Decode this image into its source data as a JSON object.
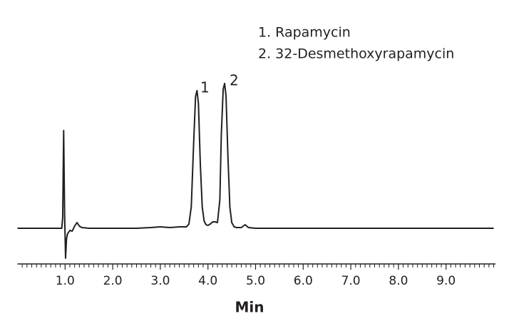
{
  "chart_data": {
    "type": "line",
    "legend_items": [
      "1.  Rapamycin",
      "2.  32-Desmethoxyrapamycin"
    ],
    "peak_labels": [
      "1",
      "2"
    ],
    "xlabel": "Min",
    "color": "#231f20",
    "x": [
      0,
      0.5,
      0.9,
      0.93,
      0.95,
      0.97,
      0.99,
      1.01,
      1.03,
      1.05,
      1.08,
      1.1,
      1.15,
      1.2,
      1.25,
      1.3,
      1.35,
      1.5,
      2.0,
      2.5,
      2.8,
      3.0,
      3.2,
      3.4,
      3.55,
      3.6,
      3.65,
      3.7,
      3.74,
      3.77,
      3.8,
      3.84,
      3.88,
      3.92,
      3.96,
      4.0,
      4.05,
      4.1,
      4.15,
      4.2,
      4.25,
      4.28,
      4.32,
      4.35,
      4.38,
      4.42,
      4.46,
      4.5,
      4.55,
      4.6,
      4.7,
      4.78,
      4.85,
      5.0,
      6.0,
      7.0,
      8.0,
      9.0,
      10.0
    ],
    "values": [
      0,
      0,
      0,
      0,
      15,
      137,
      20,
      -42,
      -15,
      -8,
      -5,
      -3,
      -4,
      3,
      8,
      3,
      1,
      0,
      0,
      0,
      1,
      2,
      1,
      2,
      2,
      6,
      30,
      120,
      185,
      193,
      175,
      90,
      30,
      10,
      5,
      4,
      6,
      9,
      9,
      8,
      40,
      130,
      195,
      203,
      185,
      100,
      30,
      8,
      2,
      1,
      1,
      5,
      1,
      0,
      0,
      0,
      0,
      0,
      0
    ],
    "xlim": [
      0,
      10
    ],
    "xticks": [
      {
        "value": 1,
        "label": "1.0"
      },
      {
        "value": 2,
        "label": "2.0"
      },
      {
        "value": 3,
        "label": "3.0"
      },
      {
        "value": 4,
        "label": "4.0"
      },
      {
        "value": 5,
        "label": "5.0"
      },
      {
        "value": 6,
        "label": "6.0"
      },
      {
        "value": 7,
        "label": "7.0"
      },
      {
        "value": 8,
        "label": "8.0"
      },
      {
        "value": 9,
        "label": "9.0"
      }
    ],
    "xminorticks": [
      0.1,
      0.2,
      0.3,
      0.4,
      0.5,
      0.6,
      0.7,
      0.8,
      0.9,
      1.1,
      1.2,
      1.3,
      1.4,
      1.5,
      1.6,
      1.7,
      1.8,
      1.9,
      2.1,
      2.2,
      2.3,
      2.4,
      2.5,
      2.6,
      2.7,
      2.8,
      2.9,
      3.1,
      3.2,
      3.3,
      3.4,
      3.5,
      3.6,
      3.7,
      3.8,
      3.9,
      4.1,
      4.2,
      4.3,
      4.4,
      4.5,
      4.6,
      4.7,
      4.8,
      4.9,
      5.1,
      5.2,
      5.3,
      5.4,
      5.5,
      5.6,
      5.7,
      5.8,
      5.9,
      6.1,
      6.2,
      6.3,
      6.4,
      6.5,
      6.6,
      6.7,
      6.8,
      6.9,
      7.1,
      7.2,
      7.3,
      7.4,
      7.5,
      7.6,
      7.7,
      7.8,
      7.9,
      8.1,
      8.2,
      8.3,
      8.4,
      8.5,
      8.6,
      8.7,
      8.8,
      8.9,
      9.1,
      9.2,
      9.3,
      9.4,
      9.5,
      9.6,
      9.7,
      9.8,
      9.9,
      10
    ],
    "ylim": [
      -60,
      240
    ]
  }
}
